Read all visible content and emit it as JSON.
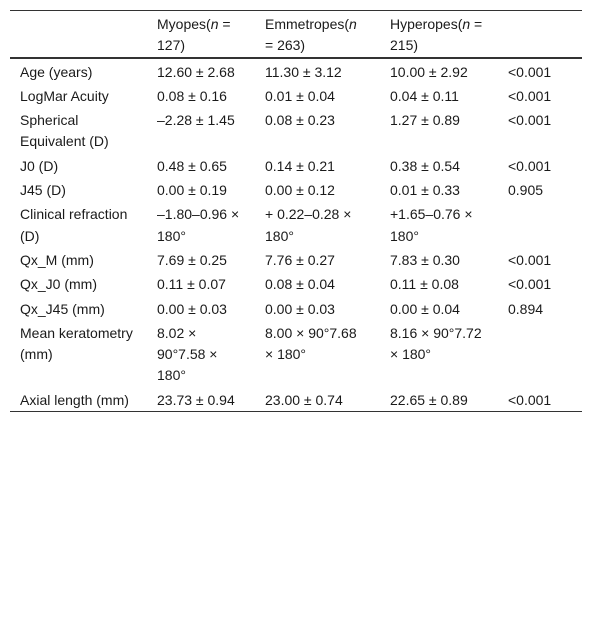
{
  "table": {
    "header": [
      [
        "Myopes(",
        "n",
        " = 127)"
      ],
      [
        "Emmetropes(",
        "n",
        " = 263)"
      ],
      [
        "Hyperopes(",
        "n",
        " = 215)"
      ]
    ],
    "rows": [
      [
        "Age (years)",
        "12.60 ± 2.68",
        "11.30 ± 3.12",
        "10.00 ± 2.92",
        "<0.001"
      ],
      [
        "LogMar Acuity",
        "0.08 ± 0.16",
        "0.01 ± 0.04",
        "0.04 ± 0.11",
        "<0.001"
      ],
      [
        "Spherical Equivalent (D)",
        "–2.28 ± 1.45",
        "0.08 ± 0.23",
        "1.27 ± 0.89",
        "<0.001"
      ],
      [
        "J0 (D)",
        "0.48 ± 0.65",
        "0.14 ± 0.21",
        "0.38 ± 0.54",
        "<0.001"
      ],
      [
        "J45 (D)",
        "0.00 ± 0.19",
        "0.00 ± 0.12",
        "0.01 ± 0.33",
        "0.905"
      ],
      [
        "Clinical refraction (D)",
        "–1.80–0.96 × 180°",
        "+ 0.22–0.28 × 180°",
        "+1.65–0.76 × 180°"
      ],
      [
        "Qx_M (mm)",
        "7.69 ± 0.25",
        "7.76 ± 0.27",
        "7.83 ± 0.30",
        "<0.001"
      ],
      [
        "Qx_J0 (mm)",
        "0.11 ± 0.07",
        "0.08 ± 0.04",
        "0.11 ± 0.08",
        "<0.001"
      ],
      [
        "Qx_J45 (mm)",
        "0.00 ± 0.03",
        "0.00 ± 0.03",
        "0.00 ± 0.04",
        "0.894"
      ],
      [
        "Mean keratometry (mm)",
        "8.02 × 90°7.58 × 180°",
        "8.00 × 90°7.68 × 180°",
        "8.16 × 90°7.72 × 180°"
      ],
      [
        "Axial length (mm)",
        "23.73 ± 0.94",
        "23.00 ± 0.74",
        "22.65 ± 0.89",
        "<0.001"
      ]
    ]
  }
}
